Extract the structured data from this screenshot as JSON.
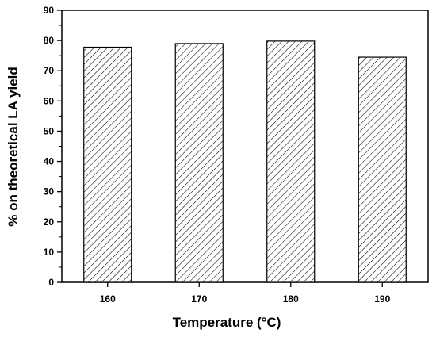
{
  "chart_data": {
    "type": "bar",
    "categories": [
      "160",
      "170",
      "180",
      "190"
    ],
    "values": [
      77.8,
      79.0,
      79.8,
      74.5
    ],
    "title": "",
    "xlabel": "Temperature (°C)",
    "ylabel": "% on theoretical LA yield",
    "ylim": [
      0,
      90
    ],
    "yticks": [
      0,
      10,
      20,
      30,
      40,
      50,
      60,
      70,
      80,
      90
    ],
    "bar_fill": "diagonal-hatch",
    "bar_stroke": "#000000",
    "grid": false,
    "legend": "none"
  }
}
